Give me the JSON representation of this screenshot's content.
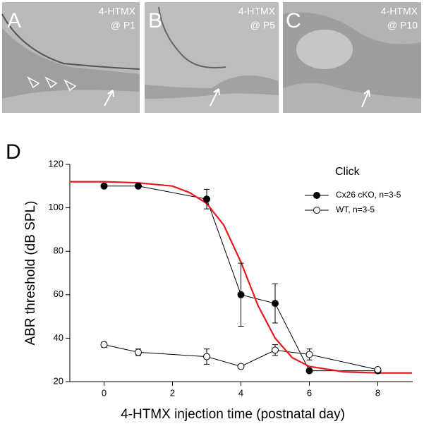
{
  "images": [
    {
      "label": "A",
      "line1": "4-HTMX",
      "line2": "@ P1"
    },
    {
      "label": "B",
      "line1": "4-HTMX",
      "line2": "@ P5"
    },
    {
      "label": "C",
      "line1": "4-HTMX",
      "line2": "@ P10"
    }
  ],
  "chart_data": {
    "type": "line",
    "panel_label": "D",
    "y_label": "ABR threshold (dB SPL)",
    "x_label": "4-HTMX injection time (postnatal day)",
    "legend_title": "Click",
    "x": [
      0,
      1,
      3,
      4,
      5,
      6,
      8
    ],
    "series": [
      {
        "name": "Cx26 cKO, n=3-5",
        "color": "#000000",
        "marker": "filled",
        "values": [
          110,
          110,
          104,
          60,
          56,
          25,
          25
        ],
        "errors": [
          0,
          0,
          4.5,
          14.5,
          9,
          0,
          0
        ]
      },
      {
        "name": "WT, n=3-5",
        "color": "#000000",
        "marker": "open",
        "values": [
          37,
          33.5,
          31.5,
          27,
          34.5,
          32.5,
          25.5
        ],
        "errors": [
          1.2,
          1.5,
          3.5,
          0.5,
          2.5,
          2.5,
          0.5
        ]
      },
      {
        "color": "#e41a1c",
        "x": [
          -1,
          0,
          1,
          2,
          2.5,
          3,
          3.5,
          4,
          4.5,
          5,
          5.5,
          6,
          7,
          8,
          9
        ],
        "values": [
          112,
          112,
          111.5,
          110,
          107,
          102,
          92,
          75,
          55,
          40,
          31,
          27,
          24.5,
          24,
          24
        ]
      }
    ],
    "xlim": [
      -1,
      9
    ],
    "ylim": [
      20,
      120
    ],
    "xticks": [
      0,
      2,
      4,
      6,
      8
    ],
    "yticks": [
      20,
      40,
      60,
      80,
      100,
      120
    ]
  }
}
